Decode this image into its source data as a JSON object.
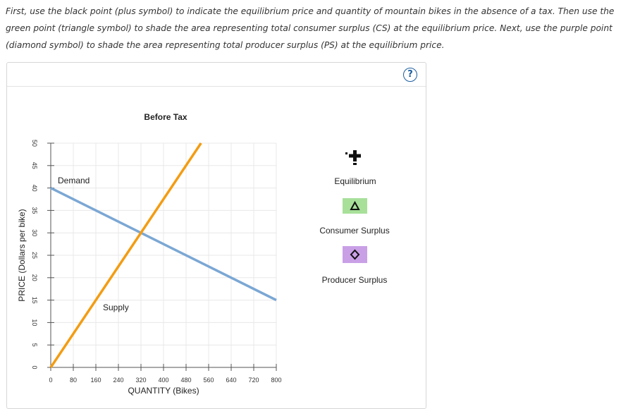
{
  "instructions": "First, use the black point (plus symbol) to indicate the equilibrium price and quantity of mountain bikes in the absence of a tax. Then use the green point (triangle symbol) to shade the area representing total consumer surplus (CS) at the equilibrium price. Next, use the purple point (diamond symbol) to shade the area representing total producer surplus (PS) at the equilibrium price.",
  "help_symbol": "?",
  "palette": {
    "equilibrium_symbol": "plus",
    "consumer_surplus_color": "#a8e09a",
    "producer_surplus_color": "#c9a0e6",
    "demand_color": "#7ba7d4",
    "supply_color": "#f39c12"
  },
  "tools": [
    {
      "icon": "plus-icon",
      "label": "Equilibrium"
    },
    {
      "icon": "triangle-icon",
      "label": "Consumer Surplus"
    },
    {
      "icon": "diamond-icon",
      "label": "Producer Surplus"
    }
  ],
  "chart_data": {
    "type": "line",
    "title": "Before Tax",
    "xlabel": "QUANTITY (Bikes)",
    "ylabel": "PRICE (Dollars per bike)",
    "xlim": [
      0,
      800
    ],
    "ylim": [
      0,
      50
    ],
    "xticks": [
      0,
      80,
      160,
      240,
      320,
      400,
      480,
      560,
      640,
      720,
      800
    ],
    "yticks": [
      0,
      5,
      10,
      15,
      20,
      25,
      30,
      35,
      40,
      45,
      50
    ],
    "grid": true,
    "series": [
      {
        "name": "Demand",
        "color": "#7ba7d4",
        "x": [
          0,
          800
        ],
        "y": [
          40,
          15
        ]
      },
      {
        "name": "Supply",
        "color": "#f39c12",
        "x": [
          0,
          533
        ],
        "y": [
          0,
          50
        ]
      }
    ]
  }
}
